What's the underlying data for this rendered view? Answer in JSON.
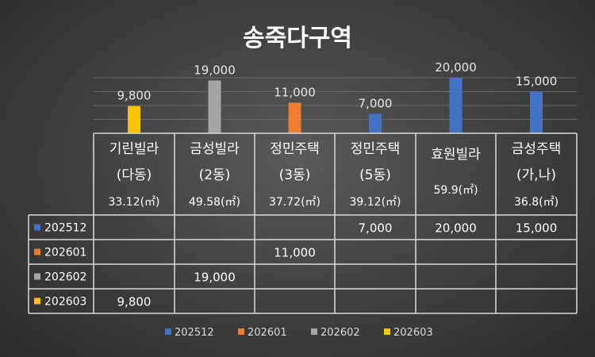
{
  "chart_data": {
    "type": "bar",
    "title": "송죽다구역",
    "categories": [
      {
        "lines": [
          "기린빌라",
          "(다동)",
          "33.12(㎡)"
        ]
      },
      {
        "lines": [
          "금성빌라",
          "(2동)",
          "49.58(㎡)"
        ]
      },
      {
        "lines": [
          "정민주택",
          "(3동)",
          "37.72(㎡)"
        ]
      },
      {
        "lines": [
          "정민주택",
          "(5동)",
          "39.12(㎡)"
        ]
      },
      {
        "lines": [
          "효원빌라",
          "59.9(㎡)"
        ]
      },
      {
        "lines": [
          "금성주택",
          "(가,나)",
          "36.8(㎡)"
        ]
      }
    ],
    "series": [
      {
        "name": "202512",
        "color": "#4472c4",
        "values": [
          null,
          null,
          null,
          7000,
          20000,
          15000
        ]
      },
      {
        "name": "202601",
        "color": "#ed7d31",
        "values": [
          null,
          null,
          11000,
          null,
          null,
          null
        ]
      },
      {
        "name": "202602",
        "color": "#a5a5a5",
        "values": [
          null,
          19000,
          null,
          null,
          null,
          null
        ]
      },
      {
        "name": "202603",
        "color": "#ffc000",
        "values": [
          9800,
          null,
          null,
          null,
          null,
          null
        ]
      }
    ],
    "data_labels": [
      "9,800",
      "19,000",
      "11,000",
      "7,000",
      "20,000",
      "15,000"
    ],
    "table_cells": {
      "202512": [
        "",
        "",
        "",
        "7,000",
        "20,000",
        "15,000"
      ],
      "202601": [
        "",
        "",
        "11,000",
        "",
        "",
        ""
      ],
      "202602": [
        "",
        "19,000",
        "",
        "",
        "",
        ""
      ],
      "202603": [
        "9,800",
        "",
        "",
        "",
        "",
        ""
      ]
    },
    "ylim": [
      0,
      20000
    ],
    "grid": true,
    "legend": "bottom"
  }
}
